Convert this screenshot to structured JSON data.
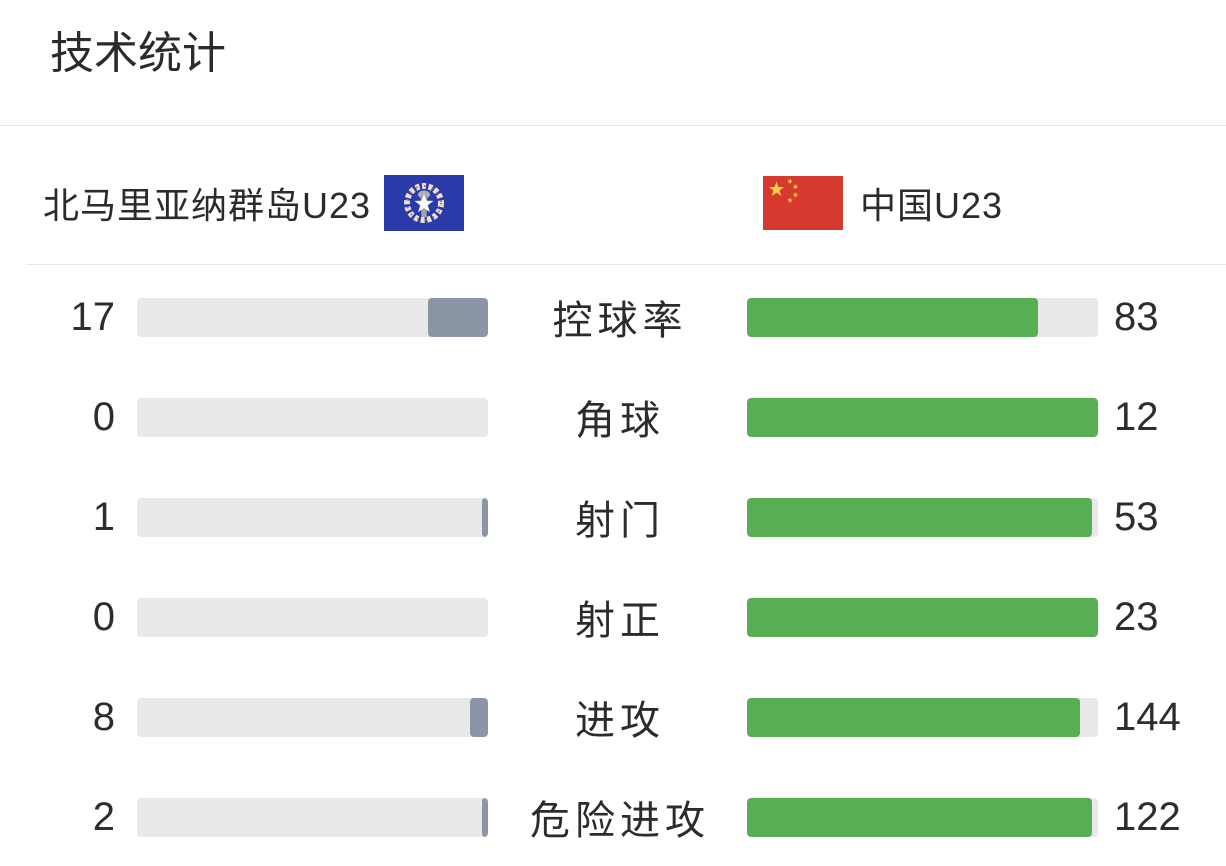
{
  "title": "技术统计",
  "teams": {
    "home": {
      "name": "北马里亚纳群岛U23",
      "flag_icon": "northern-mariana-islands-flag"
    },
    "away": {
      "name": "中国U23",
      "flag_icon": "china-flag"
    }
  },
  "stats": {
    "rows": [
      {
        "label": "控球率",
        "home": 17,
        "away": 83
      },
      {
        "label": "角球",
        "home": 0,
        "away": 12
      },
      {
        "label": "射门",
        "home": 1,
        "away": 53
      },
      {
        "label": "射正",
        "home": 0,
        "away": 23
      },
      {
        "label": "进攻",
        "home": 8,
        "away": 144
      },
      {
        "label": "危险进攻",
        "home": 2,
        "away": 122
      }
    ]
  },
  "chart_data": {
    "type": "bar",
    "title": "技术统计",
    "categories": [
      "控球率",
      "角球",
      "射门",
      "射正",
      "进攻",
      "危险进攻"
    ],
    "series": [
      {
        "name": "北马里亚纳群岛U23",
        "values": [
          17,
          0,
          1,
          0,
          8,
          2
        ]
      },
      {
        "name": "中国U23",
        "values": [
          83,
          12,
          53,
          23,
          144,
          122
        ]
      }
    ],
    "layout": "mirrored horizontal comparison bars, fill ratio = value / (home + away)"
  },
  "colors": {
    "home_bar_fill": "#8C95A6",
    "away_bar_fill": "#58AF53",
    "bar_track": "#E9E9E9",
    "text": "#2E2E2E",
    "divider": "#E7E7E7",
    "china_flag_red": "#D6392E",
    "flag_star_yellow": "#FCD13E",
    "nmi_flag_blue": "#2A3AA8"
  }
}
